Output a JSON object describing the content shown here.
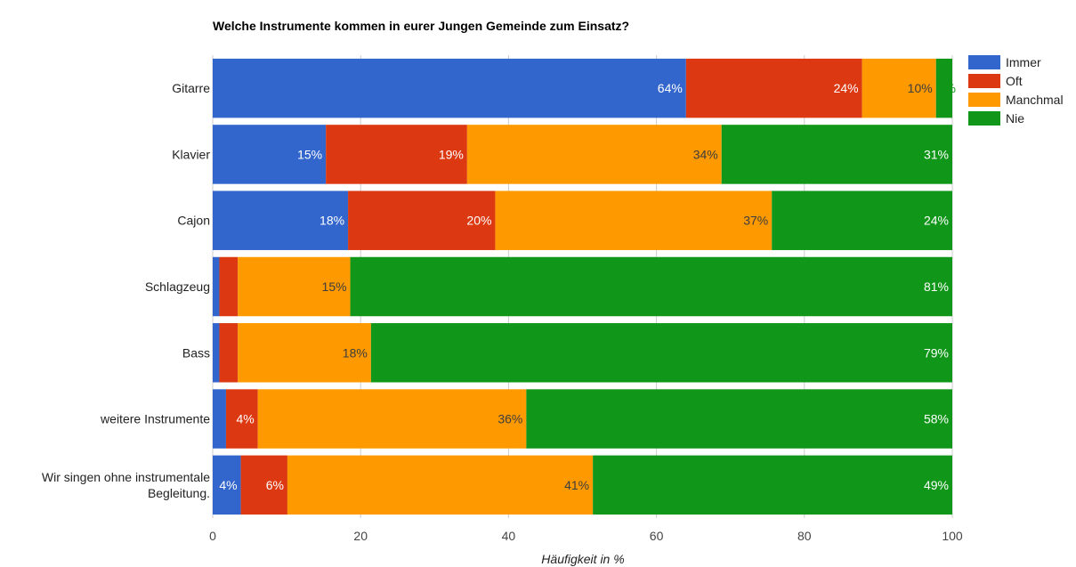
{
  "chart_data": {
    "type": "bar",
    "orientation": "horizontal",
    "stacked": true,
    "title": "Welche Instrumente kommen in eurer Jungen Gemeinde zum Einsatz?",
    "xlabel": "Häufigkeit in %",
    "ylabel": "",
    "xlim": [
      0,
      100
    ],
    "xticks": [
      "0",
      "20",
      "40",
      "60",
      "80",
      "100"
    ],
    "grid": true,
    "legend_position": "right-top",
    "categories": [
      "Gitarre",
      "Klavier",
      "Cajon",
      "Schlagzeug",
      "Bass",
      "weitere Instrumente",
      "Wir singen ohne instrumentale Begleitung."
    ],
    "series": [
      {
        "name": "Immer",
        "color": "#3366cc",
        "values": [
          64,
          15.3,
          18.3,
          0.9,
          0.9,
          1.8,
          3.8
        ],
        "labels": [
          "64%",
          "15%",
          "18%",
          "",
          "",
          "",
          "4%"
        ],
        "label_color": "#ffffff"
      },
      {
        "name": "Oft",
        "color": "#dc3912",
        "values": [
          23.8,
          19.1,
          19.9,
          2.5,
          2.5,
          4.3,
          6.3
        ],
        "labels": [
          "24%",
          "19%",
          "20%",
          "",
          "",
          "4%",
          "6%"
        ],
        "label_color": "#ffffff"
      },
      {
        "name": "Manchmal",
        "color": "#ff9900",
        "values": [
          10,
          34.4,
          37.4,
          15.2,
          18,
          36.3,
          41.3
        ],
        "labels": [
          "10%",
          "34%",
          "37%",
          "15%",
          "18%",
          "36%",
          "41%"
        ],
        "label_color": "#3d3d3d"
      },
      {
        "name": "Nie",
        "color": "#109618",
        "values": [
          2.2,
          31.2,
          24.4,
          81.4,
          78.6,
          57.6,
          48.6
        ],
        "labels": [
          "2%",
          "31%",
          "24%",
          "81%",
          "79%",
          "58%",
          "49%"
        ],
        "label_color": "#ffffff"
      }
    ]
  }
}
